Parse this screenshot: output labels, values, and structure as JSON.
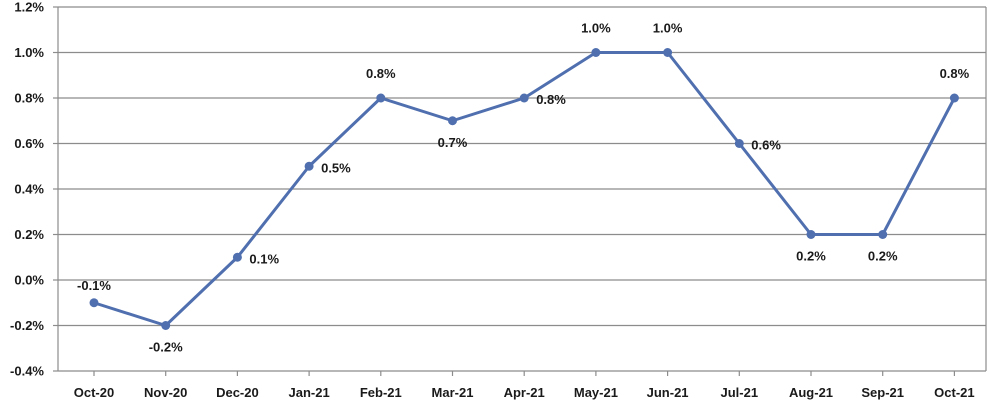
{
  "chart_data": {
    "type": "line",
    "categories": [
      "Oct-20",
      "Nov-20",
      "Dec-20",
      "Jan-21",
      "Feb-21",
      "Mar-21",
      "Apr-21",
      "May-21",
      "Jun-21",
      "Jul-21",
      "Aug-21",
      "Sep-21",
      "Oct-21"
    ],
    "series": [
      {
        "values": [
          -0.1,
          -0.2,
          0.1,
          0.5,
          0.8,
          0.7,
          0.8,
          1.0,
          1.0,
          0.6,
          0.2,
          0.2,
          0.8
        ],
        "labels": [
          "-0.1%",
          "-0.2%",
          "0.1%",
          "0.5%",
          "0.8%",
          "0.7%",
          "0.8%",
          "1.0%",
          "1.0%",
          "0.6%",
          "0.2%",
          "0.2%",
          "0.8%"
        ],
        "color": "#4f6faf"
      }
    ],
    "y_ticks": [
      {
        "value": 1.2,
        "label": "1.2%"
      },
      {
        "value": 1.0,
        "label": "1.0%"
      },
      {
        "value": 0.8,
        "label": "0.8%"
      },
      {
        "value": 0.6,
        "label": "0.6%"
      },
      {
        "value": 0.4,
        "label": "0.4%"
      },
      {
        "value": 0.2,
        "label": "0.2%"
      },
      {
        "value": 0.0,
        "label": "0.0%"
      },
      {
        "value": -0.2,
        "label": "-0.2%"
      },
      {
        "value": -0.4,
        "label": "-0.4%"
      }
    ],
    "ylim": [
      -0.4,
      1.2
    ],
    "grid": true,
    "title": "",
    "xlabel": "",
    "ylabel": "",
    "colors": {
      "line": "#4f6faf",
      "grid": "#8c8c8c",
      "axis": "#8c8c8c",
      "text": "#1a1a1a"
    }
  }
}
